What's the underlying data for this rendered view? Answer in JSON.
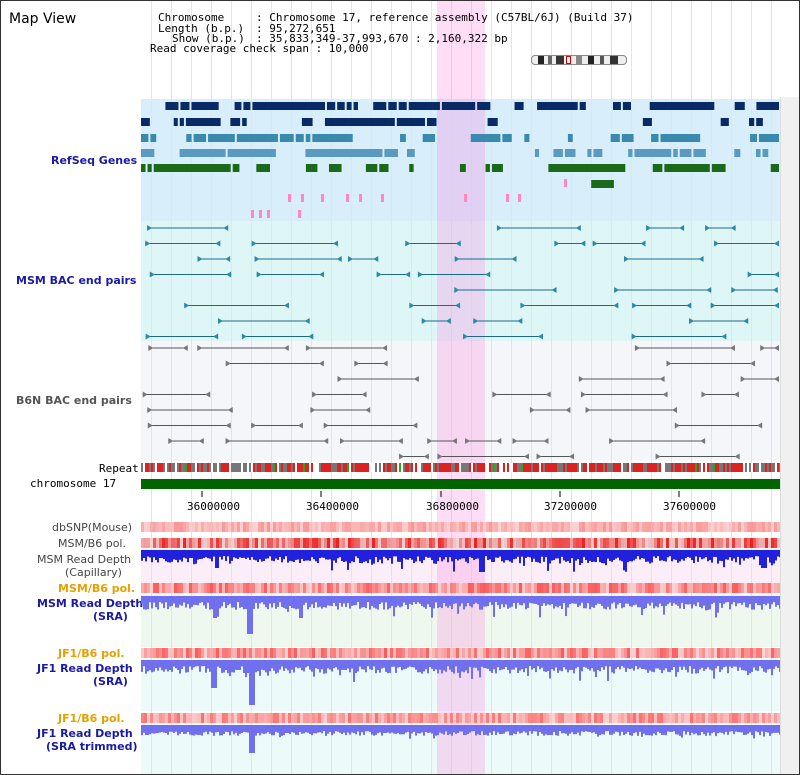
{
  "title": "Map View",
  "info": {
    "chromosome_key": "Chromosome",
    "chromosome_val": ": Chromosome 17, reference assembly (C57BL/6J) (Build 37)",
    "length_key": "Length (b.p.)",
    "length_val": ": 95,272,651",
    "show_key": "Show (b.p.)",
    "show_val": ": 35,833,349-37,993,670 : 2,160,322 bp",
    "span": "Read coverage check span : 10,000"
  },
  "tracks": {
    "refseq": "RefSeq Genes",
    "msm_bac": "MSM BAC end pairs",
    "b6n_bac": "B6N BAC end pairs",
    "repeat": "Repeat",
    "chromosome": "chromosome 17",
    "dbsnp": "dbSNP(Mouse)",
    "msm_b6_pol_1": "MSM/B6 pol.",
    "msm_depth_cap_1": "MSM Read Depth",
    "msm_depth_cap_2": "(Capillary)",
    "msm_b6_pol_2": "MSM/B6 pol.",
    "msm_depth_sra_1": "MSM Read Depth",
    "msm_depth_sra_2": "(SRA)",
    "jf1_b6_pol_1": "JF1/B6 pol.",
    "jf1_depth_sra_1": "JF1 Read Depth",
    "jf1_depth_sra_2": "(SRA)",
    "jf1_b6_pol_2": "JF1/B6 pol.",
    "jf1_depth_trim_1": "JF1 Read Depth",
    "jf1_depth_trim_2": "(SRA trimmed)"
  },
  "axis_ticks": [
    "36000000",
    "36400000",
    "36800000",
    "37200000",
    "37600000"
  ],
  "colors": {
    "refseq_bg": "#d8eefa",
    "msm_bac_bg": "#dff6f6",
    "b6n_bg": "#f4f6fa",
    "highlight": "#ffd0f0",
    "chromosome": "#006400",
    "depth_blue": "#2020dd",
    "depth_light": "#7070ee"
  }
}
